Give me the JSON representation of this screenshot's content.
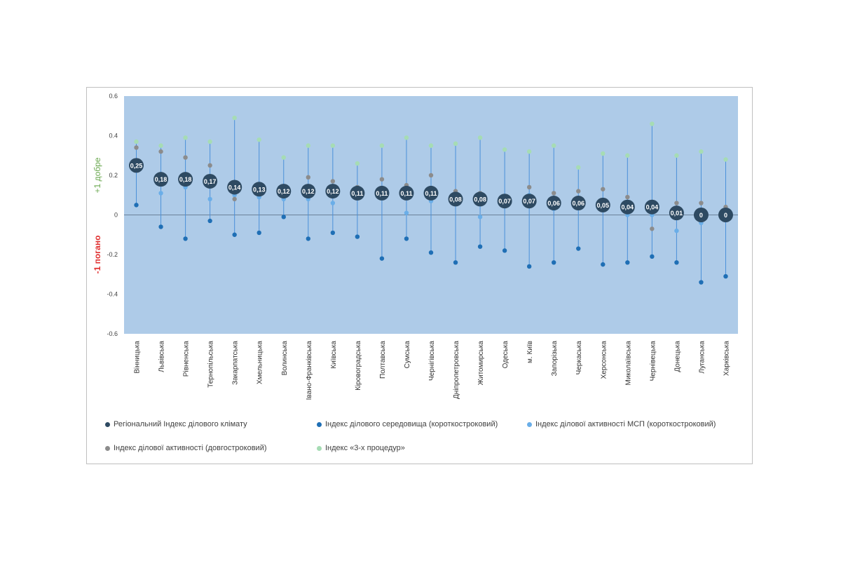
{
  "chart_data": {
    "type": "scatter",
    "ylim": [
      -0.6,
      0.6
    ],
    "yticks": [
      "0.6",
      "0.4",
      "0.2",
      "0",
      "-0.2",
      "-0.4",
      "-0.6"
    ],
    "ytick_values": [
      0.6,
      0.4,
      0.2,
      0,
      -0.2,
      -0.4,
      -0.6
    ],
    "axis_label_good": "+1 добре",
    "axis_label_bad": "-1 погано",
    "categories": [
      "Вінницька",
      "Львівська",
      "Рівненська",
      "Тернопільська",
      "Закарпатська",
      "Хмельницька",
      "Волинська",
      "Івано-Франківська",
      "Київська",
      "Кіровоградська",
      "Полтавська",
      "Сумська",
      "Чернігівська",
      "Дніпропетровська",
      "Житомирська",
      "Одеська",
      "м. Київ",
      "Запорізька",
      "Черкаська",
      "Херсонська",
      "Миколаївська",
      "Чернівецька",
      "Донецька",
      "Луганська",
      "Харківська"
    ],
    "series": [
      {
        "name": "Регіональний Індекс ділового  клімату",
        "color": "#2e4a62",
        "values": [
          0.25,
          0.18,
          0.18,
          0.17,
          0.14,
          0.13,
          0.12,
          0.12,
          0.12,
          0.11,
          0.11,
          0.11,
          0.11,
          0.08,
          0.08,
          0.07,
          0.07,
          0.06,
          0.06,
          0.05,
          0.04,
          0.04,
          0.01,
          0,
          0
        ],
        "labels": [
          "0,25",
          "0,18",
          "0,18",
          "0,17",
          "0,14",
          "0,13",
          "0,12",
          "0,12",
          "0,12",
          "0,11",
          "0,11",
          "0,11",
          "0,11",
          "0,08",
          "0,08",
          "0,07",
          "0,07",
          "0,06",
          "0,06",
          "0,05",
          "0,04",
          "0,04",
          "0,01",
          "0",
          "0"
        ]
      },
      {
        "name": "Індекс ділового середовища (короткостроковий)",
        "color": "#1f6fb5",
        "values": [
          0.05,
          -0.06,
          -0.12,
          -0.03,
          -0.1,
          -0.09,
          -0.01,
          -0.12,
          -0.09,
          -0.11,
          -0.22,
          -0.12,
          -0.19,
          -0.24,
          -0.16,
          -0.18,
          -0.26,
          -0.24,
          -0.17,
          -0.25,
          -0.24,
          -0.21,
          -0.24,
          -0.34,
          -0.31
        ]
      },
      {
        "name": "Індекс ділової активності МСП (короткостроковий)",
        "color": "#6aaee8",
        "values": [
          0.23,
          0.11,
          0.14,
          0.08,
          0.1,
          0.09,
          0.08,
          0.08,
          0.06,
          0.14,
          0.13,
          0.01,
          0.07,
          0.11,
          -0.01,
          0.07,
          0.1,
          0.03,
          0.05,
          0.03,
          0.0,
          0.0,
          -0.08,
          -0.04,
          -0.02
        ]
      },
      {
        "name": "Індекс ділової активності (довгостроковий)",
        "color": "#8c8c8c",
        "values": [
          0.34,
          0.32,
          0.29,
          0.25,
          0.08,
          0.15,
          0.1,
          0.19,
          0.17,
          0.14,
          0.18,
          0.15,
          0.2,
          0.12,
          0.11,
          0.08,
          0.14,
          0.11,
          0.12,
          0.13,
          0.09,
          -0.07,
          0.06,
          0.06,
          0.04
        ]
      },
      {
        "name": "Індекс «3-х процедур»",
        "color": "#a6dcb4",
        "values": [
          0.37,
          0.35,
          0.39,
          0.37,
          0.49,
          0.38,
          0.29,
          0.35,
          0.35,
          0.26,
          0.35,
          0.39,
          0.35,
          0.36,
          0.39,
          0.33,
          0.32,
          0.35,
          0.24,
          0.31,
          0.3,
          0.46,
          0.3,
          0.32,
          0.28
        ]
      }
    ]
  }
}
